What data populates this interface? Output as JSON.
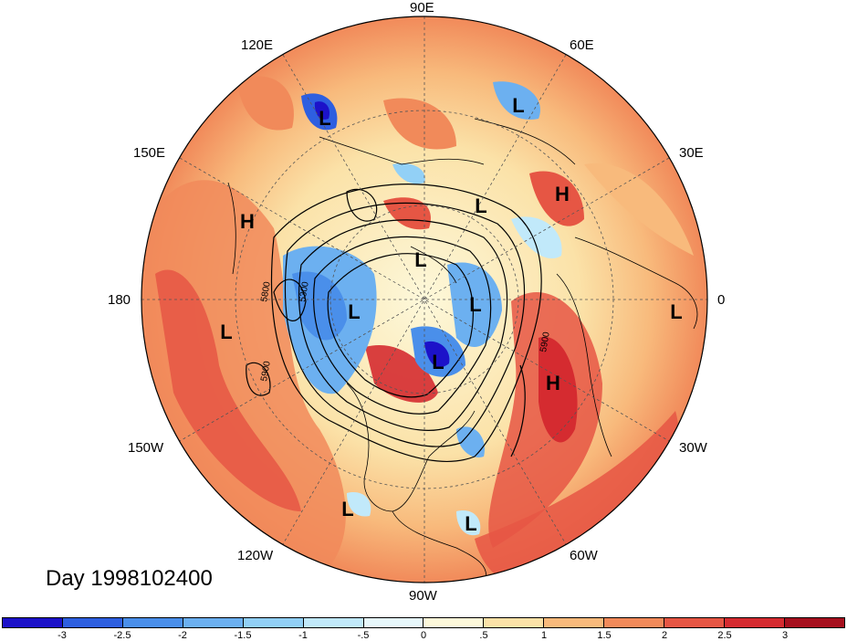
{
  "title": "Day 1998102400",
  "lon_labels": {
    "n90e": "90E",
    "n120e": "120E",
    "n60e": "60E",
    "n150e": "150E",
    "n30e": "30E",
    "w180": "180",
    "e0": "0",
    "n150w": "150W",
    "n30w": "30W",
    "n120w": "120W",
    "n60w": "60W",
    "n90w": "90W"
  },
  "contour_labels": [
    "5800",
    "5300",
    "5900",
    "5900"
  ],
  "pressure_markers": [
    {
      "type": "L",
      "label": "L"
    },
    {
      "type": "L",
      "label": "L"
    },
    {
      "type": "H",
      "label": "H"
    },
    {
      "type": "L",
      "label": "L"
    },
    {
      "type": "H",
      "label": "H"
    },
    {
      "type": "L",
      "label": "L"
    },
    {
      "type": "L",
      "label": "L"
    },
    {
      "type": "L",
      "label": "L"
    },
    {
      "type": "L",
      "label": "L"
    },
    {
      "type": "L",
      "label": "L"
    },
    {
      "type": "L",
      "label": "L"
    },
    {
      "type": "H",
      "label": "H"
    },
    {
      "type": "L",
      "label": "L"
    },
    {
      "type": "L",
      "label": "L"
    }
  ],
  "colorbar": {
    "ticks": [
      "-3",
      "-2.5",
      "-2",
      "-1.5",
      "-1",
      "-.5",
      "0",
      ".5",
      "1",
      "1.5",
      "2",
      "2.5",
      "3"
    ],
    "colors": [
      "#1c12c9",
      "#2e5fe0",
      "#4a8fea",
      "#6cb0f0",
      "#92d0f6",
      "#c1e9fa",
      "#e7f7fb",
      "#fdf8da",
      "#fbe2a8",
      "#f8ba7c",
      "#f18a5a",
      "#e65644",
      "#d52b30",
      "#a6101e"
    ]
  }
}
